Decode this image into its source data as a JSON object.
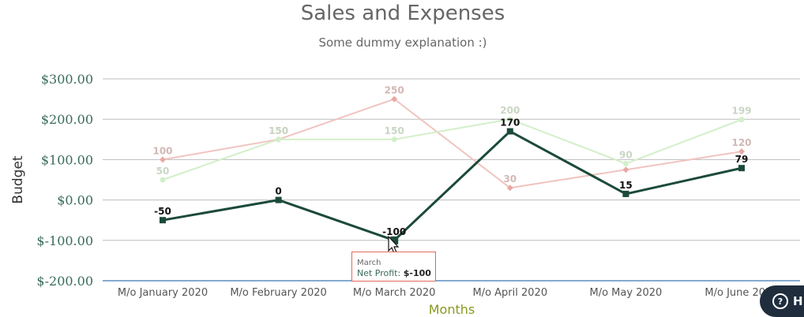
{
  "chart_data": {
    "type": "line",
    "title": "Sales and Expenses",
    "subtitle": "Some dummy explanation :)",
    "xlabel": "Months",
    "ylabel": "Budget",
    "categories": [
      "M/o January 2020",
      "M/o February 2020",
      "M/o March 2020",
      "M/o April 2020",
      "M/o May 2020",
      "M/o June 2020"
    ],
    "ylim": [
      -200,
      300
    ],
    "yticks": [
      300,
      200,
      100,
      0,
      -100,
      -200
    ],
    "ytick_labels": [
      "$300.00",
      "$200.00",
      "$100.00",
      "$0.00",
      "$-100.00",
      "$-200.00"
    ],
    "grid": true,
    "series": [
      {
        "key": "s1",
        "values": [
          100,
          150,
          250,
          30,
          75,
          120
        ],
        "labels": [
          "100",
          "150",
          "250",
          "30",
          "",
          "120"
        ],
        "color": "#f0c4c0",
        "label_color": "#d2b8b5",
        "marker": "diamond",
        "faded": true
      },
      {
        "key": "s2",
        "values": [
          50,
          150,
          150,
          200,
          90,
          199
        ],
        "labels": [
          "50",
          "150",
          "150",
          "200",
          "90",
          "199"
        ],
        "color": "#d3efc9",
        "label_color": "#c9d6c4",
        "marker": "circle",
        "faded": true
      },
      {
        "key": "net",
        "name": "Net Profit",
        "values": [
          -50,
          0,
          -100,
          170,
          15,
          79
        ],
        "labels": [
          "-50",
          "0",
          "-100",
          "170",
          "15",
          "79"
        ],
        "color": "#1c4a3a",
        "label_color": "#111111",
        "marker": "square",
        "faded": false
      }
    ]
  },
  "tooltip": {
    "title": "March",
    "series_name": "Net Profit:",
    "value": "$-100"
  },
  "help_button": {
    "label": "H",
    "icon": "question-circle-icon",
    "icon_glyph": "?"
  }
}
